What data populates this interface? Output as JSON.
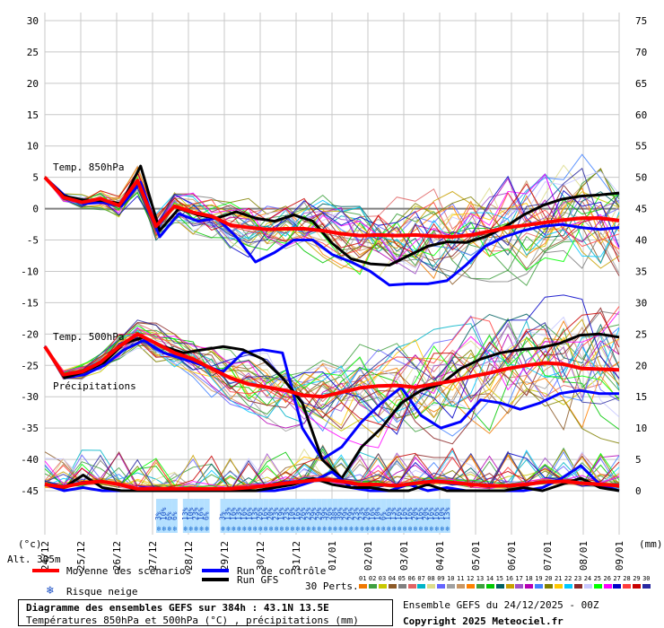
{
  "chart_data": {
    "type": "line",
    "panels": [
      {
        "name": "Temp. 850hPa"
      },
      {
        "name": "Temp. 500hPa"
      },
      {
        "name": "Précipitations"
      }
    ],
    "left_axis": {
      "label": "(°c)",
      "ticks": [
        30,
        25,
        20,
        15,
        10,
        5,
        0,
        -5,
        -10,
        -15,
        -20,
        -25,
        -30,
        -35,
        -40,
        -45
      ],
      "range": [
        -45,
        30
      ]
    },
    "right_axis": {
      "label": "(mm)",
      "ticks": [
        75,
        70,
        65,
        60,
        55,
        50,
        45,
        40,
        35,
        30,
        25,
        20,
        15,
        10,
        5,
        0
      ],
      "range": [
        0,
        75
      ]
    },
    "x_labels": [
      "25/12",
      "26/12",
      "27/12",
      "28/12",
      "29/12",
      "30/12",
      "31/12",
      "01/01",
      "02/01",
      "03/01",
      "04/01",
      "05/01",
      "06/01",
      "07/01",
      "08/01",
      "09/01"
    ],
    "x_start_label": "24/12",
    "days": 16,
    "snow_risk": [
      "3%",
      "10%",
      "6%",
      "6%",
      "",
      "13%",
      "10%",
      "23%",
      "16%",
      "6%",
      "",
      "",
      "3%",
      "13%",
      "16%",
      "13%",
      "16%",
      "16%",
      "13%",
      "26%",
      "16%",
      "20%",
      "23%",
      "19%",
      "23%",
      "10%",
      "16%",
      "26%",
      "23%",
      "29%",
      "29%",
      "39%",
      "26%",
      "48%",
      "39%",
      "29%",
      "29%",
      "23%",
      "23%",
      "20%",
      "16%",
      "10%",
      "6%",
      "16%",
      "13%",
      "16%",
      "16%",
      "16%",
      "20%",
      "16%",
      "20%",
      "16%",
      "16%",
      "10%",
      "13%"
    ],
    "series": [
      {
        "name": "Moyenne des scénarios",
        "color": "#ff0000",
        "panel": "t850",
        "values": [
          5,
          1.8,
          1,
          1.6,
          0.5,
          4.5,
          -2.8,
          0.4,
          -0.6,
          -1.2,
          -2.6,
          -3,
          -3.3,
          -3.2,
          -3.2,
          -3.5,
          -4,
          -4.3,
          -4.2,
          -4.3,
          -4.2,
          -4.4,
          -4.5,
          -4.2,
          -3.6,
          -3.0,
          -2.6,
          -2.2,
          -1.8,
          -1.5,
          -1.5,
          -1.9
        ]
      },
      {
        "name": "Run de contrôle",
        "color": "#0000ff",
        "panel": "t850",
        "values": [
          5,
          2.2,
          0.8,
          1.0,
          0.4,
          4.2,
          -4.5,
          -0.8,
          -2,
          -1.5,
          -4.5,
          -8.5,
          -7,
          -5,
          -5,
          -7.3,
          -8.5,
          -10,
          -12.2,
          -12,
          -12,
          -11.5,
          -9,
          -6,
          -4.5,
          -3.5,
          -2.8,
          -2.5,
          -3,
          -3.3,
          -3
        ]
      },
      {
        "name": "Run GFS",
        "color": "#000000",
        "panel": "t850",
        "values": [
          5,
          2,
          1.4,
          1.3,
          0.8,
          6.8,
          -3.5,
          0,
          -1,
          -1.5,
          -0.5,
          -1.5,
          -2,
          -1,
          -2,
          -5.5,
          -8,
          -8.8,
          -9,
          -7.5,
          -6,
          -5.3,
          -5.4,
          -4.5,
          -3,
          -1,
          0.5,
          1.5,
          2,
          2.2,
          2.5
        ]
      },
      {
        "name": "Moyenne des scénarios",
        "color": "#ff0000",
        "panel": "t500",
        "values": [
          -22,
          -26.5,
          -26,
          -24.5,
          -22,
          -20,
          -21.5,
          -23,
          -24,
          -25.5,
          -27,
          -28,
          -28.5,
          -29,
          -29.8,
          -30,
          -29.3,
          -28.6,
          -28.3,
          -28.2,
          -28.5,
          -28,
          -27.5,
          -26.8,
          -26.2,
          -25.5,
          -25,
          -24.6,
          -24.8,
          -25.5,
          -25.6,
          -25.7
        ]
      },
      {
        "name": "Run de contrôle",
        "color": "#0000ff",
        "panel": "t500",
        "values": [
          -22,
          -27,
          -26.5,
          -25,
          -22.5,
          -21,
          -23,
          -24,
          -25,
          -26,
          -23,
          -22.5,
          -23,
          -35,
          -40,
          -38,
          -34,
          -31,
          -28.5,
          -33,
          -35,
          -34,
          -30.5,
          -31,
          -32,
          -31,
          -29.5,
          -29,
          -29.5,
          -29.5
        ]
      },
      {
        "name": "Run GFS",
        "color": "#000000",
        "panel": "t500",
        "values": [
          -22,
          -27,
          -26,
          -24.5,
          -21.5,
          -20.5,
          -22,
          -23,
          -22.5,
          -22,
          -22.5,
          -24,
          -27,
          -31,
          -40,
          -43,
          -38,
          -35,
          -31,
          -29,
          -28,
          -25.5,
          -24,
          -23,
          -22.5,
          -22.2,
          -21.5,
          -20.2,
          -20,
          -20.5
        ]
      },
      {
        "name": "Moyenne des scénarios",
        "color": "#ff0000",
        "panel": "precip",
        "values": [
          1.0,
          0.6,
          1.2,
          1.5,
          1.0,
          0.3,
          0.3,
          0.3,
          0.3,
          0.3,
          0.3,
          0.5,
          0.8,
          1.2,
          1.5,
          1.8,
          1.5,
          1.0,
          1.0,
          0.8,
          1.2,
          1.5,
          1.3,
          1.0,
          0.8,
          0.8,
          1.0,
          1.4,
          1.5,
          1.2,
          1.0,
          0.8
        ]
      },
      {
        "name": "Run de contrôle",
        "color": "#0000ff",
        "panel": "precip",
        "values": [
          1,
          0,
          0.5,
          0,
          0,
          0,
          0,
          0,
          0,
          0,
          0,
          0,
          0,
          0.5,
          1.5,
          3,
          0.5,
          0,
          0,
          1,
          0,
          0.5,
          0,
          0,
          0,
          0,
          0.5,
          2,
          4,
          1,
          0
        ]
      },
      {
        "name": "Run GFS",
        "color": "#000000",
        "panel": "precip",
        "values": [
          1,
          0.5,
          2.5,
          0.5,
          0,
          0,
          0,
          0,
          0,
          0,
          0,
          0,
          0.5,
          1,
          2,
          1,
          0.5,
          0.5,
          0,
          0,
          1,
          0,
          0,
          0,
          0,
          0.5,
          0,
          1,
          2,
          0.5,
          0
        ]
      }
    ]
  },
  "labels": {
    "temp850": "Temp. 850hPa",
    "temp500": "Temp. 500hPa",
    "precip": "Précipitations",
    "unit_left": "(°c)",
    "unit_right": "(mm)",
    "alt": "Alt. 305m"
  },
  "legend": {
    "mean": "Moyenne des scénarios",
    "control": "Run de contrôle",
    "gfs": "Run GFS",
    "snow": "Risque neige",
    "perts_label": "30 Perts.",
    "perts_numbers": [
      "01",
      "02",
      "03",
      "04",
      "05",
      "06",
      "07",
      "08",
      "09",
      "10",
      "11",
      "12",
      "13",
      "14",
      "15",
      "16",
      "17",
      "18",
      "19",
      "20",
      "21",
      "22",
      "23",
      "24",
      "25",
      "26",
      "27",
      "28",
      "29",
      "30"
    ],
    "perts_colors": [
      "#f07800",
      "#40a040",
      "#c8c800",
      "#8c5a28",
      "#808080",
      "#e06464",
      "#00b4c8",
      "#dcdc8c",
      "#6464ff",
      "#a0a0a0",
      "#c89664",
      "#ff8000",
      "#3ca03c",
      "#00c800",
      "#006060",
      "#c8a000",
      "#a050c8",
      "#b400b4",
      "#4080ff",
      "#808000",
      "#ffc800",
      "#00c8ff",
      "#8c2828",
      "#c8c8ff",
      "#00ff00",
      "#ff00ff",
      "#0000c8",
      "#ff3c3c",
      "#c80000",
      "#2828a0"
    ]
  },
  "info": {
    "line1": "Diagramme des ensembles GEFS sur 384h : 43.1N 13.5E",
    "line2": "Températures 850hPa et 500hPa (°C) , précipitations (mm)",
    "ensemble": "Ensemble GEFS du 24/12/2025 - 00Z",
    "copyright": "Copyright 2025 Meteociel.fr"
  }
}
